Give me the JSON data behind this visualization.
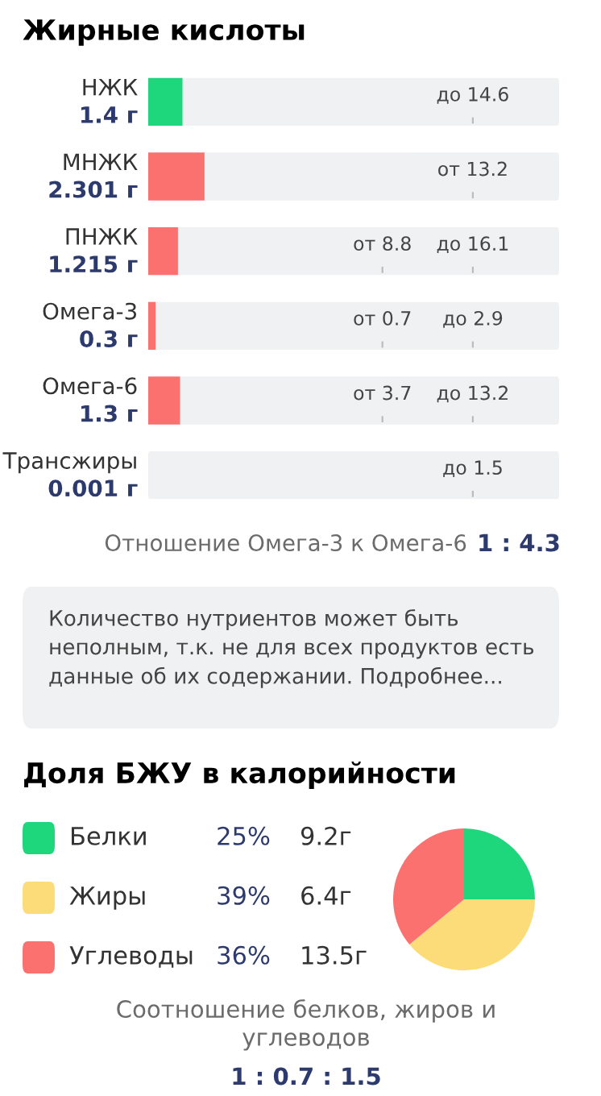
{
  "chart_data": [
    {
      "type": "bar",
      "orientation": "horizontal",
      "tick_labels": false,
      "title": "Жирные кислоты",
      "categories": [
        "НЖК",
        "МНЖК",
        "ПНЖК",
        "Омега-3",
        "Омега-6",
        "Трансжиры"
      ],
      "values": [
        1.4,
        2.301,
        1.215,
        0.3,
        1.3,
        0.001
      ],
      "colors": [
        "#1ed67c",
        "#fb7170",
        "#fb7170",
        "#fb7170",
        "#fb7170",
        "#fb7170"
      ],
      "value_labels": [
        "1.4 г",
        "2.301 г",
        "1.215 г",
        "0.3 г",
        "1.3 г",
        "0.001 г"
      ],
      "annotations": [
        "до 14.6",
        "от 13.2",
        "от 8.8",
        "до 16.1",
        "от 0.7",
        "до 2.9",
        "от 3.7",
        "до 13.2",
        "до 1.5",
        "Отношение Омега-3 к Омега-6",
        "1 : 4.3",
        "Количество нутриентов может быть неполным, т.к. не для всех продуктов есть данные об их содержании. Подробнее..."
      ]
    },
    {
      "type": "pie",
      "title": "Доля БЖУ в калорийности",
      "categories": [
        "Белки",
        "Жиры",
        "Углеводы"
      ],
      "values": [
        25,
        39,
        36
      ],
      "colors": [
        "#1ed67c",
        "#fcdc78",
        "#fb7170"
      ],
      "value_labels": [
        "25%",
        "39%",
        "36%"
      ],
      "legend": "left",
      "annotations": [
        "9.2г",
        "6.4г",
        "13.5г",
        "Соотношение белков, жиров и углеводов",
        "1 : 0.7 : 1.5"
      ]
    }
  ]
}
